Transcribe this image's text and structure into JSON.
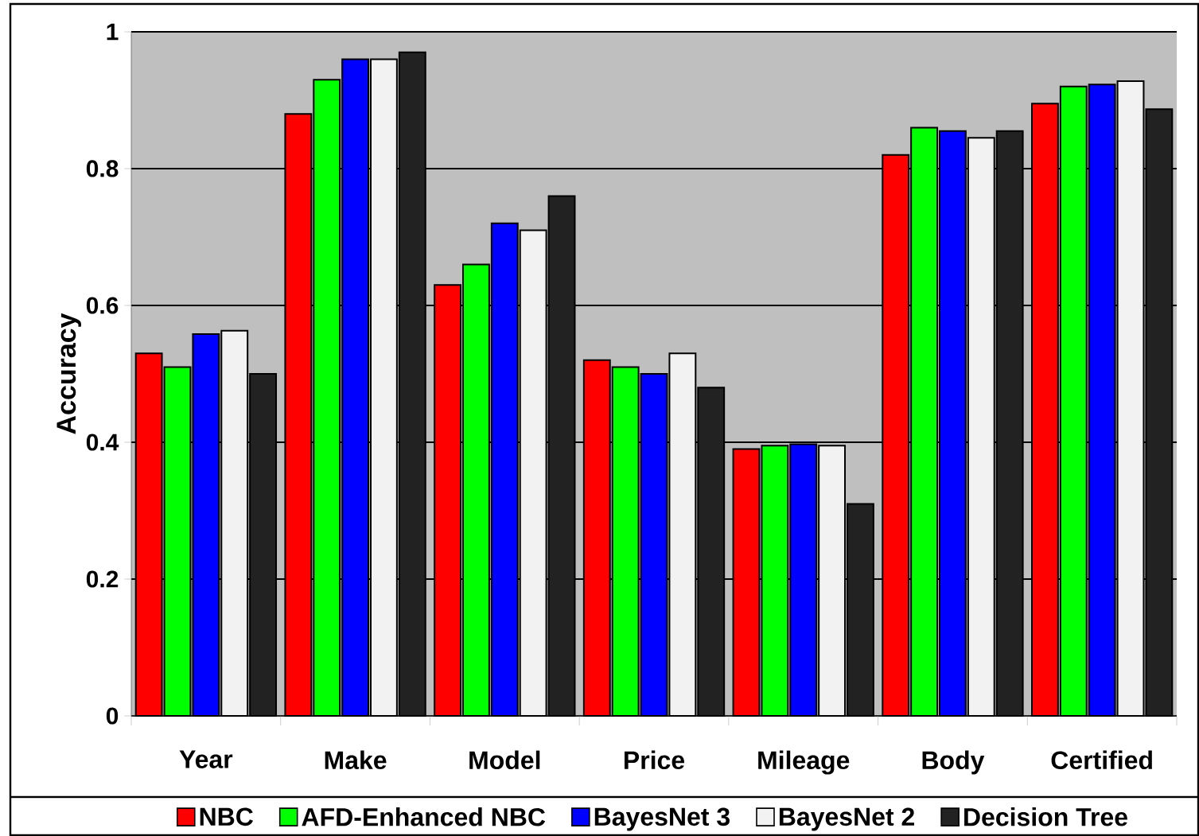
{
  "chart_data": {
    "type": "bar",
    "ylabel": "Accuracy",
    "categories": [
      "Year",
      "Make",
      "Model",
      "Price",
      "Mileage",
      "Body",
      "Certified"
    ],
    "series": [
      {
        "name": "NBC",
        "color": "#ff0000",
        "values": [
          0.53,
          0.88,
          0.63,
          0.52,
          0.39,
          0.82,
          0.895
        ]
      },
      {
        "name": "AFD-Enhanced NBC",
        "color": "#00ff00",
        "values": [
          0.51,
          0.93,
          0.66,
          0.51,
          0.395,
          0.86,
          0.92
        ]
      },
      {
        "name": "BayesNet 3",
        "color": "#0000ff",
        "values": [
          0.558,
          0.96,
          0.72,
          0.5,
          0.397,
          0.855,
          0.923
        ]
      },
      {
        "name": "BayesNet 2",
        "color": "#f2f2f2",
        "values": [
          0.563,
          0.96,
          0.71,
          0.53,
          0.395,
          0.845,
          0.928
        ]
      },
      {
        "name": "Decision Tree",
        "color": "#222222",
        "values": [
          0.5,
          0.97,
          0.76,
          0.48,
          0.31,
          0.855,
          0.887
        ]
      }
    ],
    "ylim": [
      0,
      1
    ],
    "yticks": [
      0,
      0.2,
      0.4,
      0.6,
      0.8,
      1
    ],
    "grid": "y",
    "legend": "bottom"
  }
}
